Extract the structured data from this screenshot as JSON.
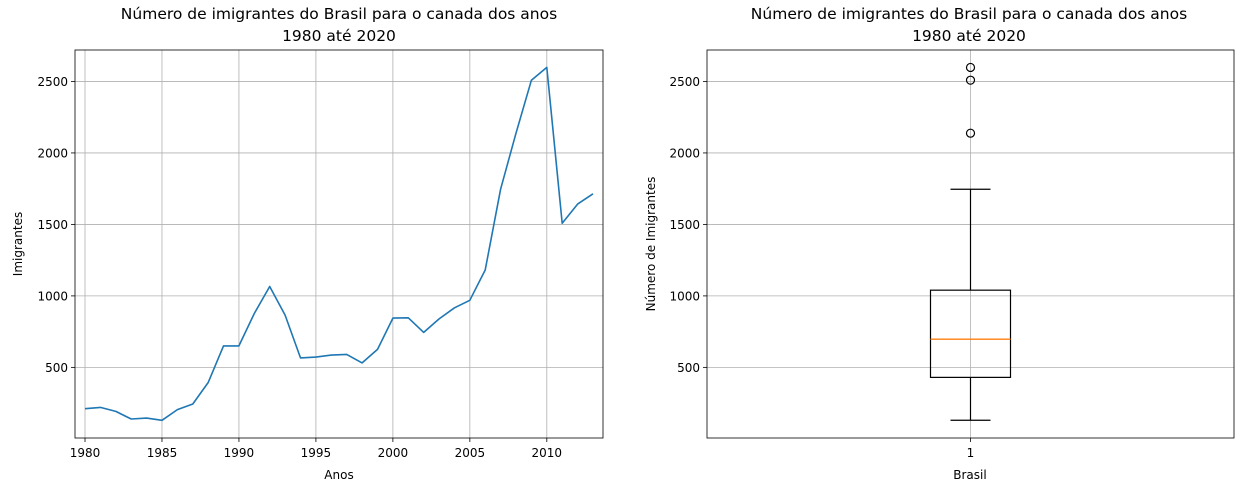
{
  "chart_data": [
    {
      "type": "line",
      "title_line1": "Número de imigrantes do Brasil para o canada dos anos",
      "title_line2": "1980 até 2020",
      "xlabel": "Anos",
      "ylabel": "Imigrantes",
      "xlim": [
        1979.35,
        2013.65
      ],
      "ylim": [
        6,
        2720
      ],
      "xticks": [
        1980,
        1985,
        1990,
        1995,
        2000,
        2005,
        2010
      ],
      "yticks": [
        500,
        1000,
        1500,
        2000,
        2500
      ],
      "grid": true,
      "line_color": "#1f77b4",
      "series": [
        {
          "x": [
            1980,
            1981,
            1982,
            1983,
            1984,
            1985,
            1986,
            1987,
            1988,
            1989,
            1990,
            1991,
            1992,
            1993,
            1994,
            1995,
            1996,
            1997,
            1998,
            1999,
            2000,
            2001,
            2002,
            2003,
            2004,
            2005,
            2006,
            2007,
            2008,
            2009,
            2010,
            2011,
            2012,
            2013
          ],
          "values": [
            211,
            220,
            192,
            139,
            145,
            130,
            205,
            244,
            394,
            650,
            650,
            877,
            1066,
            866,
            566,
            572,
            586,
            591,
            531,
            626,
            845,
            847,
            745,
            839,
            917,
            969,
            1181,
            1746,
            2138,
            2509,
            2598,
            1508,
            1642,
            1714
          ]
        }
      ]
    },
    {
      "type": "box",
      "title_line1": "Número de imigrantes do Brasil para o canada dos anos",
      "title_line2": "1980 até 2020",
      "xlabel": "Brasil",
      "ylabel": "Número de Imigrantes",
      "category": "1",
      "ylim": [
        6,
        2720
      ],
      "yticks": [
        500,
        1000,
        1500,
        2000,
        2500
      ],
      "grid": true,
      "box_color": "#000000",
      "median_color": "#ff7f0e",
      "stats": {
        "whisker_low": 130,
        "q1": 430,
        "median": 697,
        "q3": 1040,
        "whisker_high": 1746,
        "fliers": [
          2138,
          2509,
          2598
        ]
      }
    }
  ]
}
